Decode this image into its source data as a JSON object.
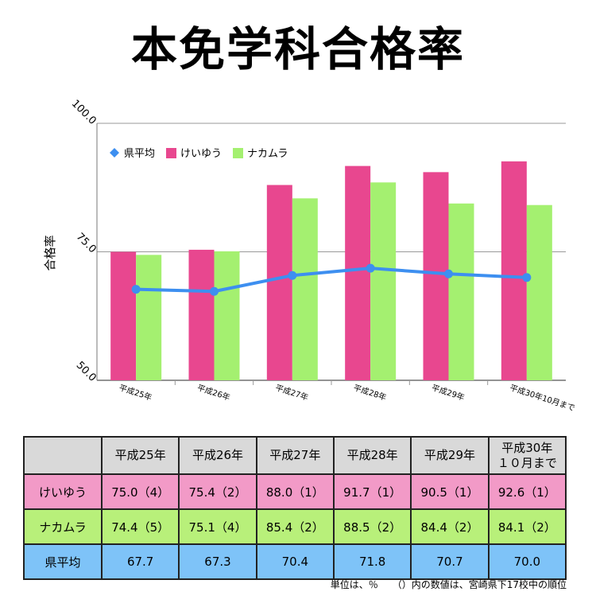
{
  "title": "本免学科合格率",
  "chart_data": {
    "type": "bar",
    "categories": [
      "平成25年",
      "平成26年",
      "平成27年",
      "平成28年",
      "平成29年",
      "平成30年10月まで"
    ],
    "ylabel": "合格率",
    "ylim": [
      50,
      100
    ],
    "yticks": [
      "50.0",
      "75.0",
      "100.0"
    ],
    "legend_position": "top-left",
    "series": [
      {
        "name": "県平均",
        "type": "line",
        "color": "#3d8ff0",
        "values": [
          67.7,
          67.3,
          70.4,
          71.8,
          70.7,
          70.0
        ]
      },
      {
        "name": "けいゆう",
        "type": "bar",
        "color": "#e8478f",
        "values": [
          75.0,
          75.4,
          88.0,
          91.7,
          90.5,
          92.6
        ]
      },
      {
        "name": "ナカムラ",
        "type": "bar",
        "color": "#a4f070",
        "values": [
          74.4,
          75.1,
          85.4,
          88.5,
          84.4,
          84.1
        ]
      }
    ]
  },
  "table": {
    "headers": [
      "平成25年",
      "平成26年",
      "平成27年",
      "平成28年",
      "平成29年",
      "平成30年"
    ],
    "header_extra": "１０月まで",
    "rows": [
      {
        "name": "けいゆう",
        "cells": [
          "75.0（4）",
          "75.4（2）",
          "88.0（1）",
          "91.7（1）",
          "90.5（1）",
          "92.6（1）"
        ]
      },
      {
        "name": "ナカムラ",
        "cells": [
          "74.4（5）",
          "75.1（4）",
          "85.4（2）",
          "88.5（2）",
          "84.4（2）",
          "84.1（2）"
        ]
      },
      {
        "name": "県平均",
        "cells": [
          "67.7",
          "67.3",
          "70.4",
          "71.8",
          "70.7",
          "70.0"
        ]
      }
    ]
  },
  "footnote": "単位は、％　　（）内の数値は、宮崎県下17校中の順位"
}
